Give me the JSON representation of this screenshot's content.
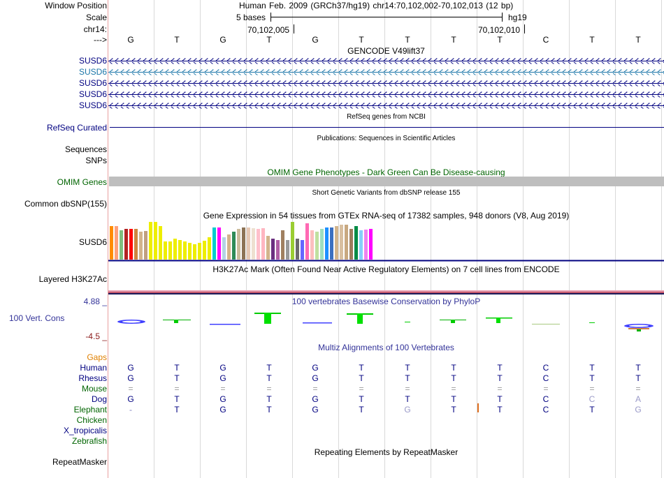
{
  "colors": {
    "navy": "#000080",
    "blue_light": "#1a75a8",
    "green": "#006400",
    "orange": "#e08000",
    "phylo_blue": "#333399",
    "phylo_red": "#8b1a1a",
    "gtex_bars": [
      "#ff8c00",
      "#ffa07a",
      "#7fbf7f",
      "#b22222",
      "#ff0000",
      "#cd853f",
      "#d2b48c",
      "#c0a080",
      "#eeee00",
      "#eeee00",
      "#eeee00",
      "#eeee00",
      "#eeee00",
      "#eeee00",
      "#eeee00",
      "#eeee00",
      "#eeee00",
      "#eeee00",
      "#eeee00",
      "#eeee00",
      "#eeee00",
      "#00cdcd",
      "#ff00ff",
      "#b4d2e6",
      "#d2b48c",
      "#2e8b57",
      "#ccbc9c",
      "#8c7355",
      "#e6c8b4",
      "#eee0d0",
      "#ffc0cb",
      "#ffb6c1",
      "#d2b48c",
      "#6b3080",
      "#b05fa5",
      "#a08060",
      "#999999",
      "#9acd32",
      "#6b6b6b",
      "#6666ff",
      "#ff69b4",
      "#fcbfbf",
      "#c0e0a0",
      "#9fdfbf",
      "#1e90ff",
      "#3b6fc0",
      "#d2b48c",
      "#d8bfa0",
      "#c8a880",
      "#9c7c5c",
      "#008b45",
      "#87cefa",
      "#ee82ee",
      "#ff00ff"
    ],
    "gtex_heights": [
      48,
      48,
      42,
      44,
      44,
      44,
      40,
      41,
      54,
      54,
      48,
      26,
      26,
      30,
      28,
      26,
      24,
      22,
      24,
      27,
      32,
      46,
      46,
      32,
      36,
      40,
      44,
      46,
      46,
      45,
      44,
      45,
      34,
      30,
      28,
      42,
      28,
      54,
      30,
      28,
      52,
      42,
      40,
      44,
      46,
      46,
      48,
      50,
      50,
      44,
      48,
      42,
      43,
      44
    ]
  },
  "header": {
    "window_position_label": "Window Position",
    "window_position_value": "Human Feb. 2009 (GRCh37/hg19)   chr14:70,102,002-70,102,013 (12 bp)",
    "scale_label": "Scale",
    "scale_value": "5 bases",
    "scale_assembly": "hg19",
    "chrom_label": "chr14:",
    "pos_1": "70,102,005",
    "pos_2": "70,102,010",
    "arrow_label": "--->",
    "bases": [
      "G",
      "T",
      "G",
      "T",
      "G",
      "T",
      "T",
      "T",
      "T",
      "C",
      "T",
      "T"
    ]
  },
  "gencode": {
    "title": "GENCODE V49lift37",
    "tracks": [
      "SUSD6",
      "SUSD6",
      "SUSD6",
      "SUSD6",
      "SUSD6"
    ]
  },
  "refseq": {
    "title": "RefSeq genes from NCBI",
    "label": "RefSeq Curated"
  },
  "publications": {
    "title": "Publications: Sequences in Scientific Articles",
    "labels": [
      "Sequences",
      "SNPs"
    ]
  },
  "omim": {
    "title": "OMIM Gene Phenotypes - Dark Green Can Be Disease-causing",
    "label": "OMIM Genes"
  },
  "dbsnp": {
    "title": "Short Genetic Variants from dbSNP release 155",
    "label": "Common dbSNP(155)"
  },
  "gtex": {
    "title": "Gene Expression in 54 tissues from GTEx RNA-seq of 17382 samples, 948 donors (V8, Aug 2019)",
    "label": "SUSD6"
  },
  "h3k27ac": {
    "title": "H3K27Ac Mark (Often Found Near Active Regulatory Elements) on 7 cell lines from ENCODE",
    "label": "Layered H3K27Ac"
  },
  "phylop": {
    "title": "100 vertebrates Basewise Conservation by PhyloP",
    "label": "100 Vert. Cons",
    "max": "4.88 _",
    "min": "-4.5 _"
  },
  "multiz": {
    "title": "Multiz Alignments of 100 Vertebrates",
    "species": [
      {
        "name": "Gaps",
        "bases": [
          "",
          "",
          "",
          "",
          "",
          "",
          "",
          "",
          "",
          "",
          "",
          ""
        ]
      },
      {
        "name": "Human",
        "bases": [
          "G",
          "T",
          "G",
          "T",
          "G",
          "T",
          "T",
          "T",
          "T",
          "C",
          "T",
          "T"
        ]
      },
      {
        "name": "Rhesus",
        "bases": [
          "G",
          "T",
          "G",
          "T",
          "G",
          "T",
          "T",
          "T",
          "T",
          "C",
          "T",
          "T"
        ]
      },
      {
        "name": "Mouse",
        "bases": [
          "=",
          "=",
          "=",
          "=",
          "=",
          "=",
          "=",
          "=",
          "=",
          "=",
          "=",
          "="
        ]
      },
      {
        "name": "Dog",
        "bases": [
          "G",
          "T",
          "G",
          "T",
          "G",
          "T",
          "T",
          "T",
          "T",
          "C",
          "C",
          "A"
        ]
      },
      {
        "name": "Elephant",
        "bases": [
          "-",
          "T",
          "G",
          "T",
          "G",
          "T",
          "G",
          "T",
          "T",
          "C",
          "T",
          "G"
        ]
      },
      {
        "name": "Chicken",
        "bases": [
          "",
          "",
          "",
          "",
          "",
          "",
          "",
          "",
          "",
          "",
          "",
          ""
        ]
      },
      {
        "name": "X_tropicalis",
        "bases": [
          "",
          "",
          "",
          "",
          "",
          "",
          "",
          "",
          "",
          "",
          "",
          ""
        ]
      },
      {
        "name": "Zebrafish",
        "bases": [
          "",
          "",
          "",
          "",
          "",
          "",
          "",
          "",
          "",
          "",
          "",
          ""
        ]
      }
    ]
  },
  "repeatmasker": {
    "title": "Repeating Elements by RepeatMasker",
    "label": "RepeatMasker"
  }
}
